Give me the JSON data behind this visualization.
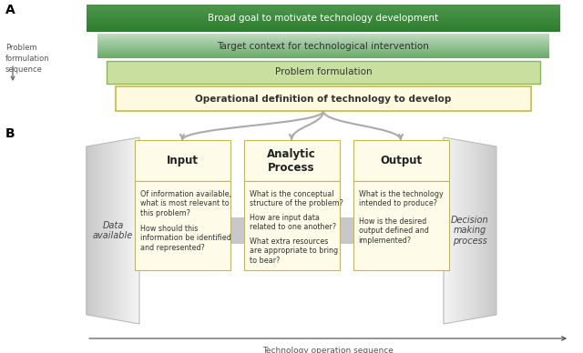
{
  "fig_width": 6.4,
  "fig_height": 3.88,
  "bg_color": "#ffffff",
  "section_A_label": "A",
  "section_B_label": "B",
  "left_label": "Problem\nformulation\nsequence",
  "bar1_text": "Broad goal to motivate technology development",
  "bar1_color_top": "#2e7d2e",
  "bar1_color_bot": "#4d974d",
  "bar2_text": "Target context for technological intervention",
  "bar2_color_top": "#6aaa6a",
  "bar2_color_bot": "#c0dcc0",
  "bar3_text": "Problem formulation",
  "bar3_color": "#c8dfa0",
  "bar3_border": "#88b858",
  "bar4_text": "Operational definition of technology to develop",
  "bar4_color": "#fdfae0",
  "bar4_border": "#c8b840",
  "data_avail_text": "Data\navailable",
  "input_title": "Input",
  "analytic_title": "Analytic\nProcess",
  "output_title": "Output",
  "decision_text": "Decision\nmaking\nprocess",
  "box_fill": "#fefce8",
  "box_border": "#c8b840",
  "input_q1": "Of information available,\nwhat is most relevant to\nthis problem?",
  "input_q2": "How should this\ninformation be identified\nand represented?",
  "analytic_q1": "What is the conceptual\nstructure of the problem?",
  "analytic_q2": "How are input data\nrelated to one another?",
  "analytic_q3": "What extra resources\nare appropriate to bring\nto bear?",
  "output_q1": "What is the technology\nintended to produce?",
  "output_q2": "How is the desired\noutput defined and\nimplemented?",
  "bottom_arrow_label": "Technology operation sequence",
  "arrow_color": "#b0b0b0",
  "connector_color": "#aaaaaa"
}
